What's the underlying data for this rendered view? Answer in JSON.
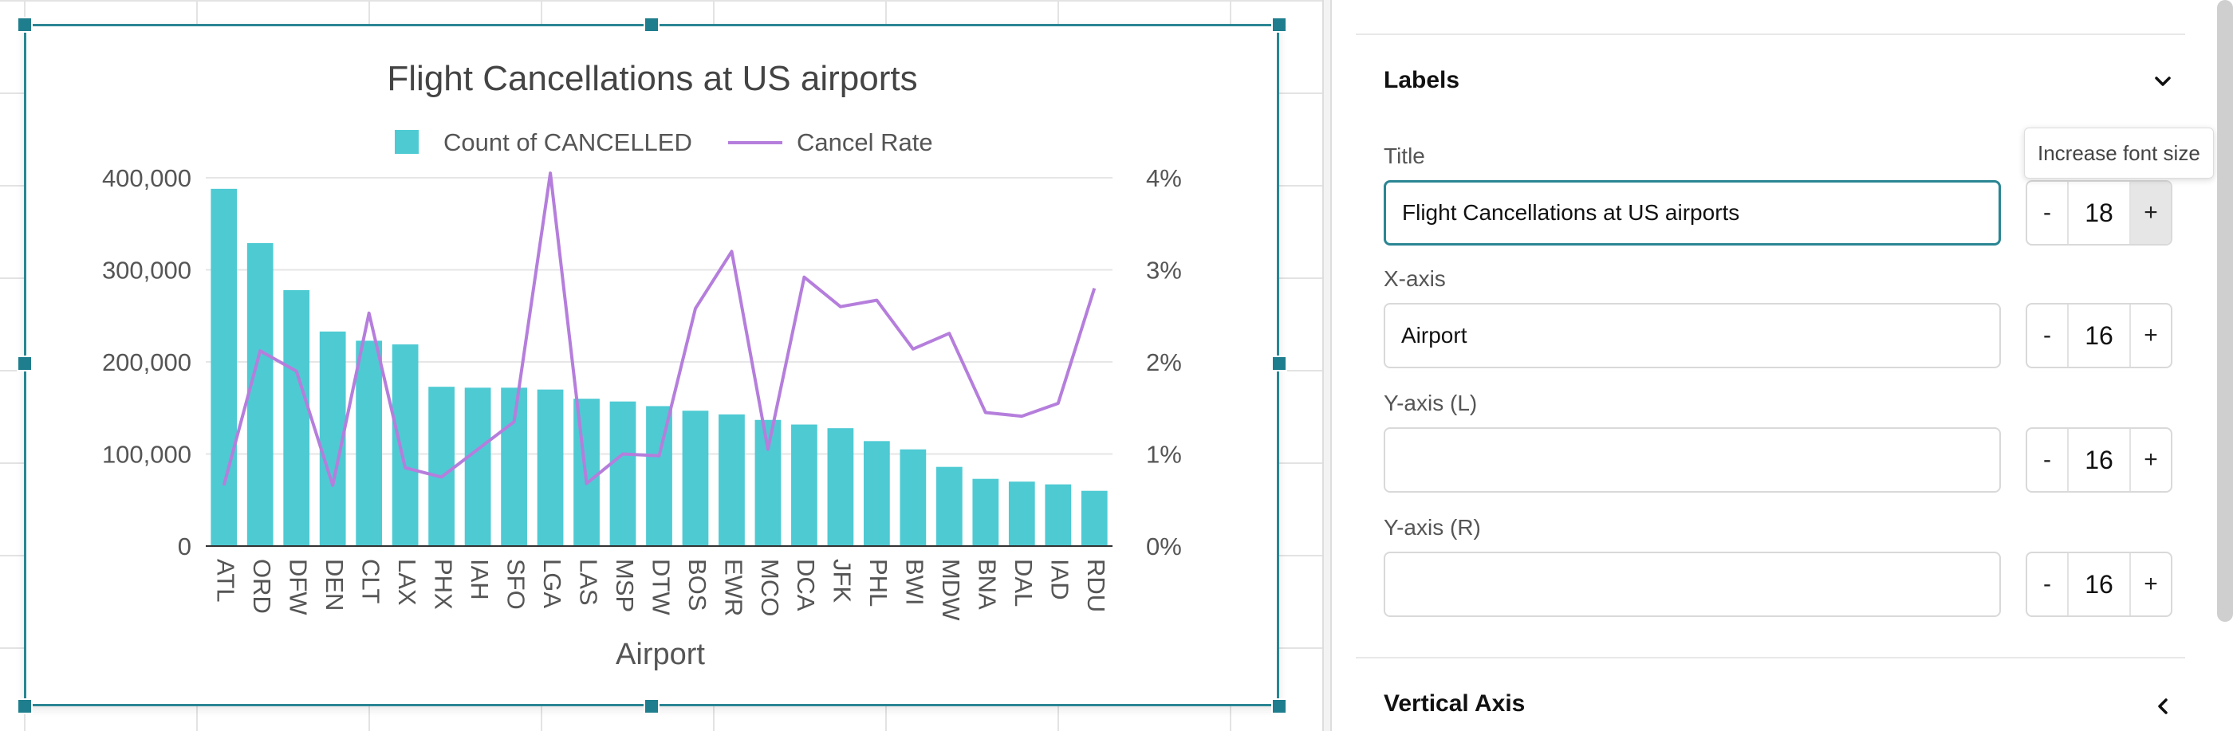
{
  "chart_data": {
    "type": "bar",
    "title": "Flight Cancellations at US airports",
    "xlabel": "Airport",
    "ylabel": "",
    "ylabel_right": "",
    "categories": [
      "ATL",
      "ORD",
      "DFW",
      "DEN",
      "CLT",
      "LAX",
      "PHX",
      "IAH",
      "SFO",
      "LGA",
      "LAS",
      "MSP",
      "DTW",
      "BOS",
      "EWR",
      "MCO",
      "DCA",
      "JFK",
      "PHL",
      "BWI",
      "MDW",
      "BNA",
      "DAL",
      "IAD",
      "RDU"
    ],
    "series": [
      {
        "name": "Count of CANCELLED",
        "type": "bar",
        "axis": "left",
        "color": "#4ecad3",
        "values": [
          388000,
          329000,
          278000,
          233000,
          223000,
          219000,
          173000,
          172000,
          172000,
          170000,
          160000,
          157000,
          152000,
          147000,
          143000,
          137000,
          132000,
          128000,
          114000,
          105000,
          86000,
          73000,
          70000,
          67000,
          60000
        ]
      },
      {
        "name": "Cancel Rate",
        "type": "line",
        "axis": "right",
        "color": "#b57edc",
        "values": [
          0.0066,
          0.0212,
          0.019,
          0.0066,
          0.0253,
          0.0085,
          0.0075,
          0.0105,
          0.0135,
          0.0405,
          0.0068,
          0.01,
          0.0098,
          0.0258,
          0.032,
          0.0105,
          0.0292,
          0.026,
          0.0267,
          0.0214,
          0.0231,
          0.0145,
          0.0141,
          0.0155,
          0.028
        ]
      }
    ],
    "ylim": [
      0,
      400000
    ],
    "yticks": [
      "0",
      "100,000",
      "200,000",
      "300,000",
      "400,000"
    ],
    "ylim_right": [
      0,
      0.04
    ],
    "yticks_right": [
      "0%",
      "1%",
      "2%",
      "3%",
      "4%"
    ],
    "legend_position": "top",
    "grid": true
  },
  "panel": {
    "labels_section": "Labels",
    "title_label": "Title",
    "title_value": "Flight Cancellations at US airports",
    "title_size": "18",
    "xaxis_label": "X-axis",
    "xaxis_value": "Airport",
    "xaxis_size": "16",
    "yaxis_left_label": "Y-axis (L)",
    "yaxis_left_value": "",
    "yaxis_left_size": "16",
    "yaxis_right_label": "Y-axis (R)",
    "yaxis_right_value": "",
    "yaxis_right_size": "16",
    "minus": "-",
    "plus": "+",
    "tooltip": "Increase font size",
    "vertical_axis_section": "Vertical Axis"
  },
  "icons": {
    "labels_chevron": "chevron-down-icon",
    "vertical_axis_chevron": "chevron-left-icon"
  }
}
